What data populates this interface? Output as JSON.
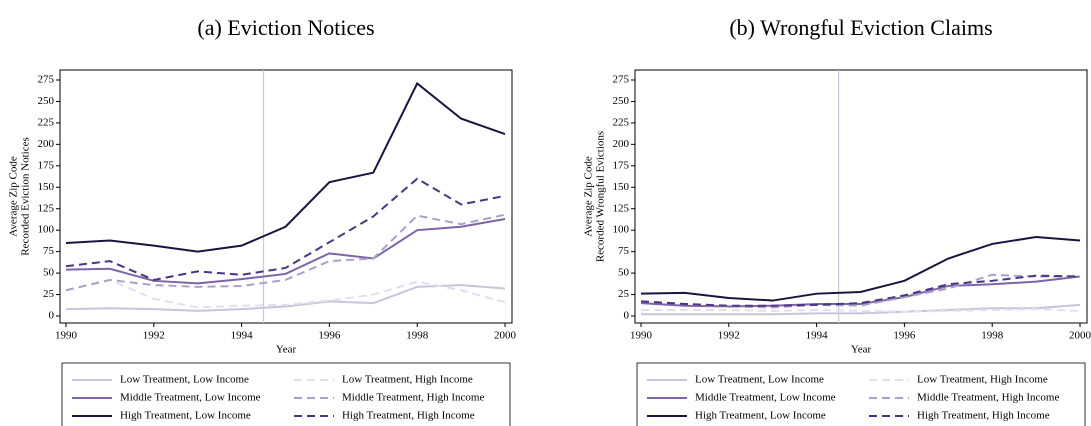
{
  "chart_data": [
    {
      "type": "line",
      "title": "(a) Eviction Notices",
      "xlabel": "Year",
      "ylabel": [
        "Average Zip Code",
        "Recorded Eviction Notices"
      ],
      "x": [
        1990,
        1991,
        1992,
        1993,
        1994,
        1995,
        1996,
        1997,
        1998,
        1999,
        2000
      ],
      "xlim": [
        1990,
        2000
      ],
      "xticks": [
        1990,
        1992,
        1994,
        1996,
        1998,
        2000
      ],
      "ylim": [
        0,
        275
      ],
      "yticks": [
        0,
        25,
        50,
        75,
        100,
        125,
        150,
        175,
        200,
        225,
        250,
        275
      ],
      "vline": 1994.5,
      "legend": "bottom",
      "series": [
        {
          "name": "Low Treatment, Low Income",
          "color": "#c9c4dc",
          "dash": false,
          "values": [
            8,
            9,
            8,
            6,
            8,
            11,
            17,
            15,
            34,
            36,
            32
          ]
        },
        {
          "name": "Low Treatment, High Income",
          "color": "#e2def0",
          "dash": true,
          "values": [
            30,
            42,
            20,
            10,
            12,
            13,
            18,
            25,
            40,
            30,
            16
          ]
        },
        {
          "name": "Middle Treatment, Low Income",
          "color": "#7b64a8",
          "dash": false,
          "values": [
            54,
            55,
            41,
            38,
            43,
            49,
            73,
            67,
            100,
            104,
            113
          ]
        },
        {
          "name": "Middle Treatment, High Income",
          "color": "#aaa0c8",
          "dash": true,
          "values": [
            30,
            42,
            36,
            34,
            35,
            42,
            64,
            67,
            117,
            107,
            118
          ]
        },
        {
          "name": "High Treatment, Low Income",
          "color": "#1a1440",
          "dash": false,
          "values": [
            85,
            88,
            82,
            75,
            82,
            104,
            156,
            167,
            271,
            230,
            212
          ]
        },
        {
          "name": "High Treatment, High Income",
          "color": "#4a3585",
          "dash": true,
          "values": [
            58,
            64,
            42,
            52,
            48,
            56,
            86,
            116,
            160,
            130,
            140
          ]
        }
      ]
    },
    {
      "type": "line",
      "title": "(b) Wrongful Eviction Claims",
      "xlabel": "Year",
      "ylabel": [
        "Average Zip Code",
        "Recorded Wrongful Evictions"
      ],
      "x": [
        1990,
        1991,
        1992,
        1993,
        1994,
        1995,
        1996,
        1997,
        1998,
        1999,
        2000
      ],
      "xlim": [
        1990,
        2000
      ],
      "xticks": [
        1990,
        1992,
        1994,
        1996,
        1998,
        2000
      ],
      "ylim": [
        0,
        275
      ],
      "yticks": [
        0,
        25,
        50,
        75,
        100,
        125,
        150,
        175,
        200,
        225,
        250,
        275
      ],
      "vline": 1994.5,
      "legend": "bottom",
      "series": [
        {
          "name": "Low Treatment, Low Income",
          "color": "#c9c4dc",
          "dash": false,
          "values": [
            2,
            2,
            2,
            2,
            3,
            3,
            5,
            7,
            9,
            9,
            13
          ]
        },
        {
          "name": "Low Treatment, High Income",
          "color": "#e2def0",
          "dash": true,
          "values": [
            7,
            7,
            7,
            6,
            7,
            6,
            5,
            6,
            7,
            8,
            6
          ]
        },
        {
          "name": "Middle Treatment, Low Income",
          "color": "#7b64a8",
          "dash": false,
          "values": [
            15,
            12,
            11,
            12,
            14,
            14,
            22,
            35,
            37,
            40,
            46
          ]
        },
        {
          "name": "Middle Treatment, High Income",
          "color": "#aaa0c8",
          "dash": true,
          "values": [
            17,
            14,
            11,
            10,
            13,
            12,
            22,
            32,
            48,
            46,
            46
          ]
        },
        {
          "name": "High Treatment, Low Income",
          "color": "#1a1440",
          "dash": false,
          "values": [
            26,
            27,
            21,
            18,
            26,
            28,
            41,
            67,
            84,
            92,
            88
          ]
        },
        {
          "name": "High Treatment, High Income",
          "color": "#4a3585",
          "dash": true,
          "values": [
            17,
            14,
            12,
            12,
            13,
            15,
            24,
            37,
            41,
            47,
            46
          ]
        }
      ]
    }
  ]
}
